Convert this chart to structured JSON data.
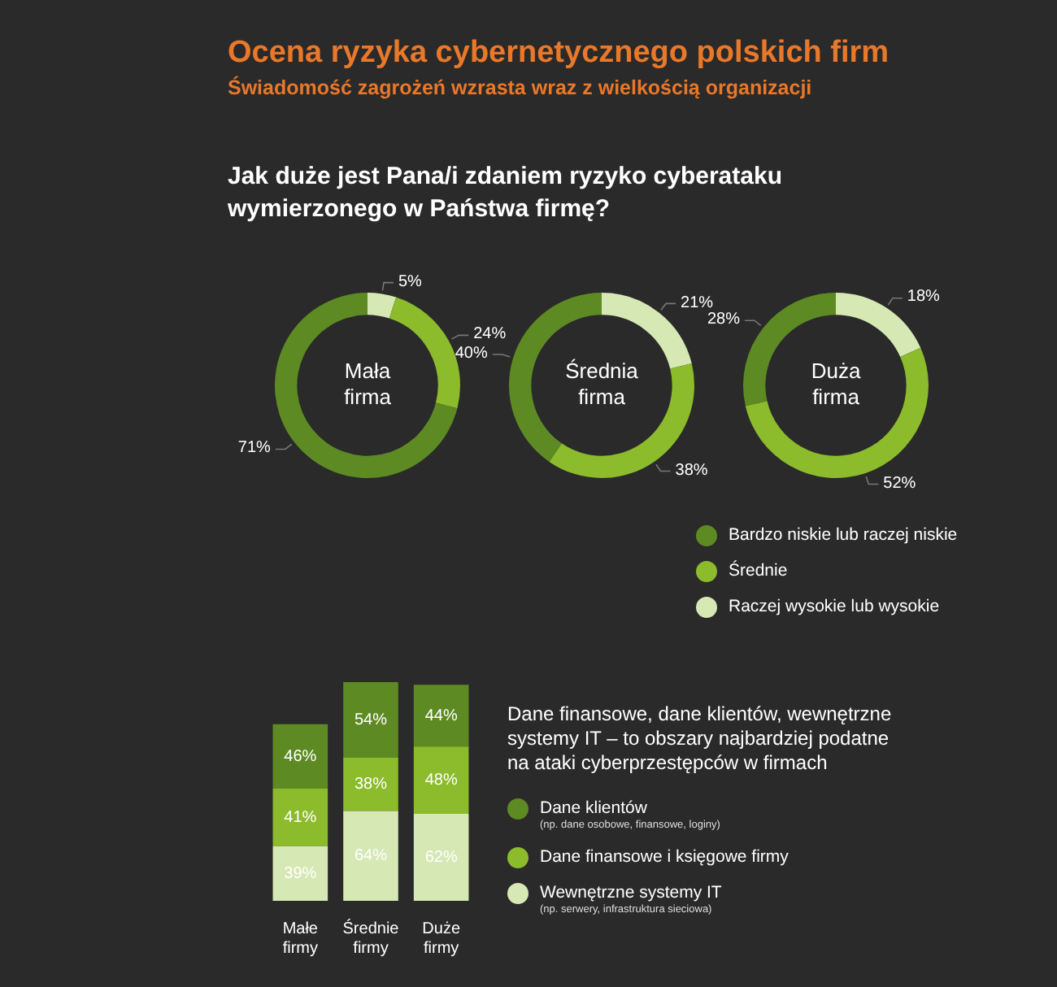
{
  "chart_data": [
    {
      "type": "other",
      "title": "Ocena ryzyka cybernetycznego polskich firm",
      "subtitle": "Świadomość zagrożeń wzrasta wraz z wielkością organizacji",
      "annotations": [
        "Jak duże jest Pana/i zdaniem ryzyko cyberataku wymierzonego w Państwa firmę?"
      ]
    },
    {
      "type": "donut",
      "title": "Mała firma",
      "categories": [
        null,
        null,
        null
      ],
      "values": [
        71,
        24,
        5
      ],
      "value_labels": [
        "71%",
        "24%",
        "5%"
      ],
      "colors": [
        "#5e8a23",
        "#8cbb2c",
        "#d6e8b4"
      ],
      "legend": false
    },
    {
      "type": "donut",
      "title": "Średnia firma",
      "categories": [
        null,
        null,
        null
      ],
      "values": [
        40,
        38,
        21
      ],
      "value_labels": [
        "40%",
        "38%",
        "21%"
      ],
      "colors": [
        "#5e8a23",
        "#8cbb2c",
        "#d6e8b4"
      ],
      "legend": false
    },
    {
      "type": "donut",
      "title": "Duża firma",
      "categories": [
        "Bardzo niskie lub raczej niskie",
        "Średnie",
        "Raczej wysokie lub wysokie"
      ],
      "values": [
        28,
        52,
        18
      ],
      "value_labels": [
        "28%",
        "52%",
        "18%"
      ],
      "colors": [
        "#5e8a23",
        "#8cbb2c",
        "#d6e8b4"
      ],
      "legend": "bottom left"
    },
    {
      "type": "bar",
      "stacked": true,
      "annotations": [
        "Dane finansowe, dane klientów, wewnętrzne systemy IT – to obszary najbardziej podatne na ataki cyberprzestępców w firmach"
      ],
      "categories": [
        "Małe firmy",
        "Średnie firmy",
        "Duże firmy"
      ],
      "legend": "right",
      "series": [
        {
          "name": "Wewnętrzne systemy IT (np. serwery, infrastruktura sieciowa)",
          "color": "#d6e8b4",
          "values": [
            39,
            64,
            62
          ],
          "value_labels": [
            "39%",
            "64%",
            "62%"
          ]
        },
        {
          "name": "Dane finansowe i księgowe firmy",
          "color": "#8cbb2c",
          "values": [
            41,
            38,
            48
          ],
          "value_labels": [
            "41%",
            "38%",
            "48%"
          ]
        },
        {
          "name": "Dane klientów (np. dane osobowe, finansowe, loginy)",
          "color": "#5e8a23",
          "values": [
            46,
            54,
            44
          ],
          "value_labels": [
            "46%",
            "54%",
            "44%"
          ]
        }
      ]
    }
  ]
}
